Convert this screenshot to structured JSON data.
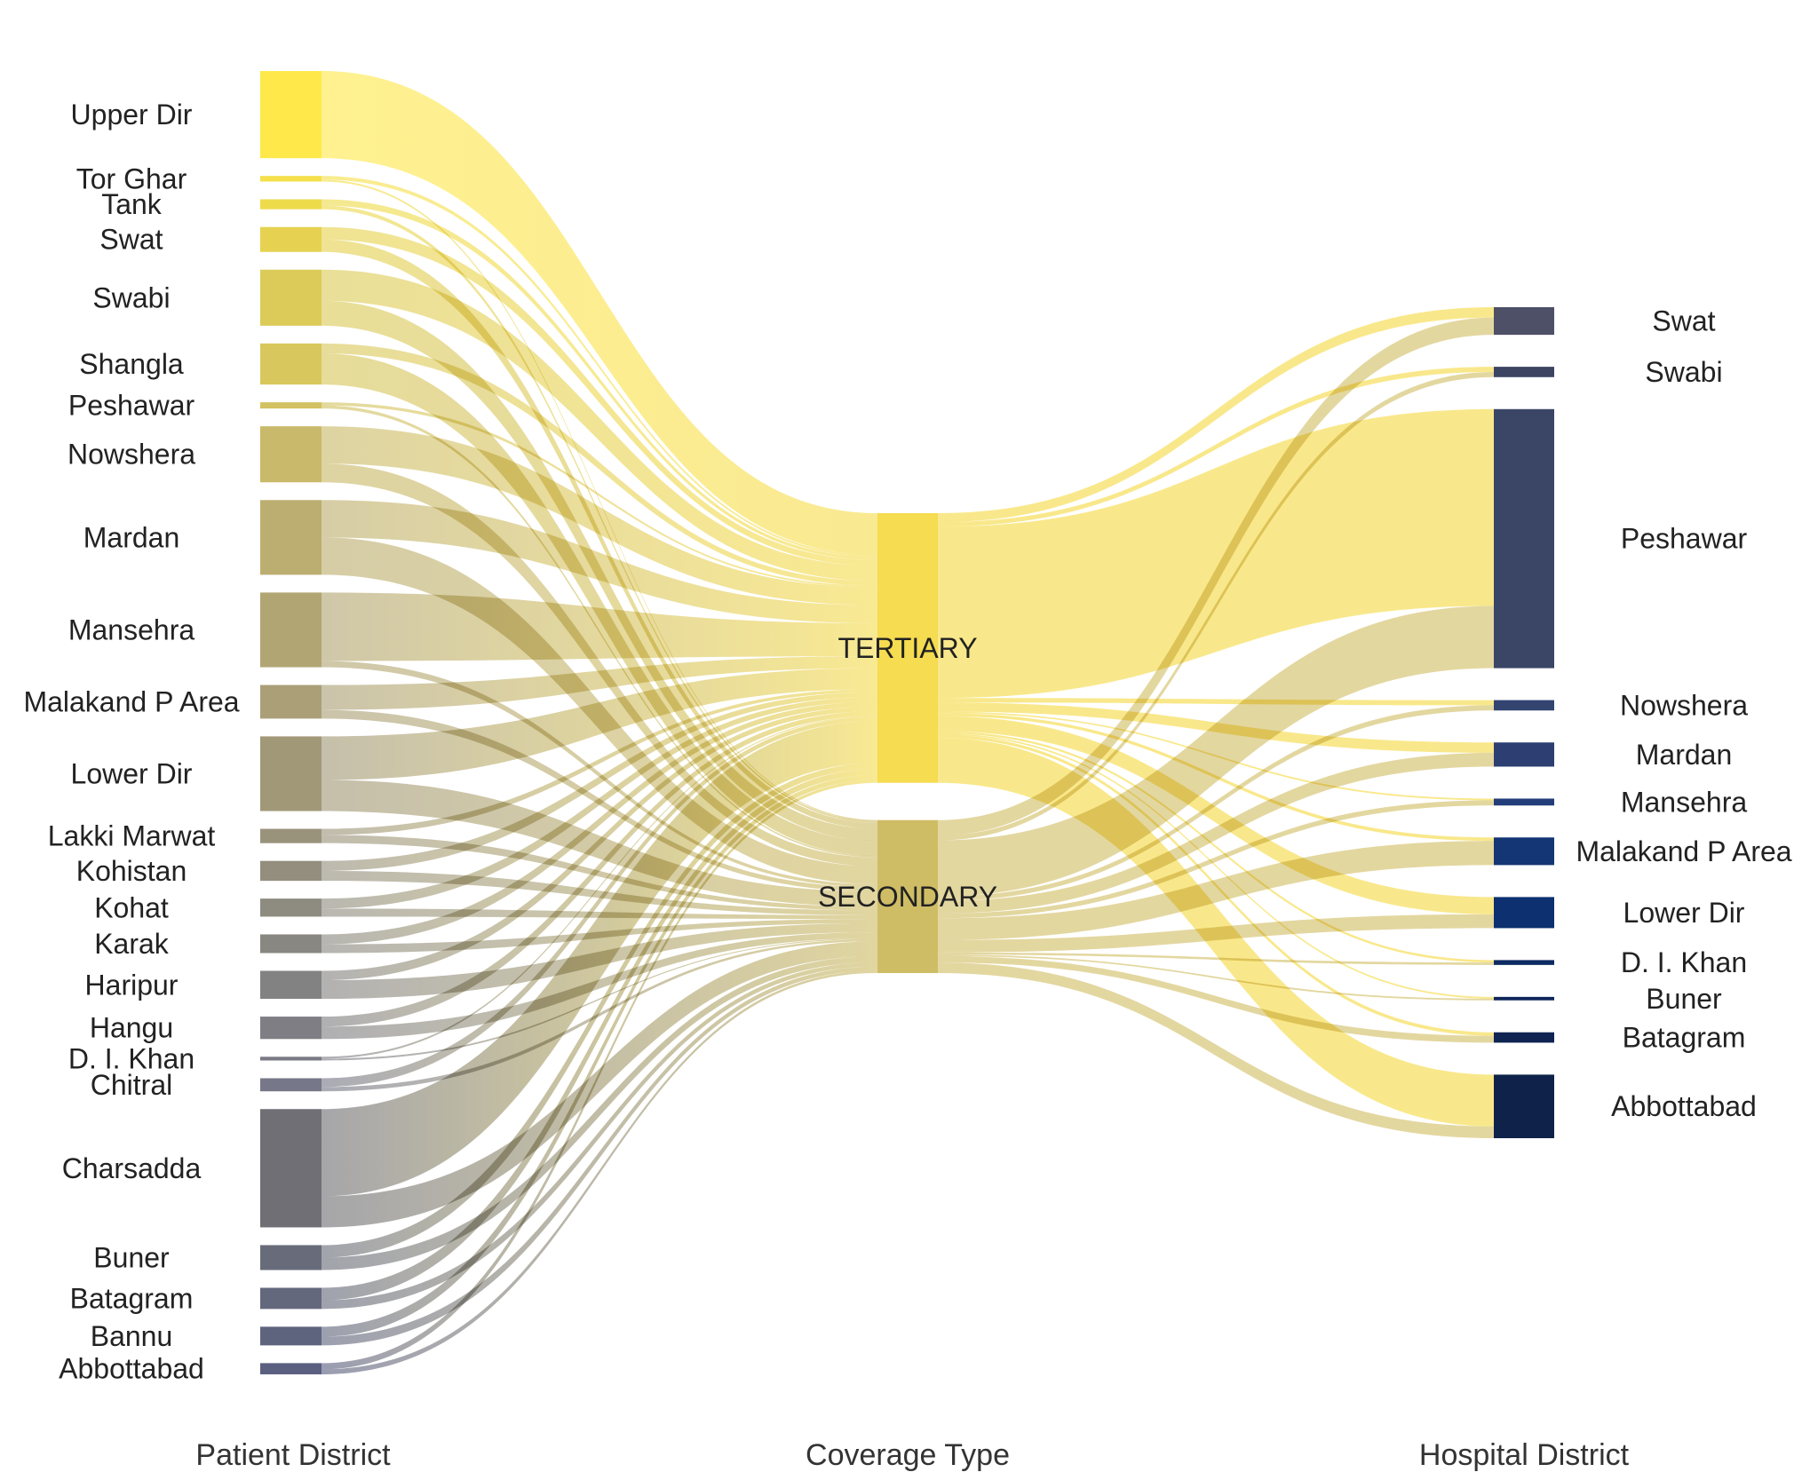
{
  "column_titles": {
    "left": "Patient District",
    "middle": "Coverage Type",
    "right": "Hospital District"
  },
  "patient_districts": [
    {
      "name": "Upper Dir",
      "tertiary": 14,
      "secondary": 0,
      "color": "#ffe94a"
    },
    {
      "name": "Tor Ghar",
      "tertiary": 0.6,
      "secondary": 0.3,
      "color": "#f5e04a"
    },
    {
      "name": "Tank",
      "tertiary": 1,
      "secondary": 0.6,
      "color": "#eedb4c"
    },
    {
      "name": "Swat",
      "tertiary": 2,
      "secondary": 2,
      "color": "#e6d250"
    },
    {
      "name": "Swabi",
      "tertiary": 5,
      "secondary": 4,
      "color": "#dccb58"
    },
    {
      "name": "Shangla",
      "tertiary": 1.6,
      "secondary": 5,
      "color": "#d8c75c"
    },
    {
      "name": "Peshawar",
      "tertiary": 0.5,
      "secondary": 0.5,
      "color": "#d2c262"
    },
    {
      "name": "Nowshera",
      "tertiary": 6,
      "secondary": 3,
      "color": "#c9b96a"
    },
    {
      "name": "Mardan",
      "tertiary": 6,
      "secondary": 6,
      "color": "#bcae70"
    },
    {
      "name": "Mansehra",
      "tertiary": 11,
      "secondary": 1,
      "color": "#b1a573"
    },
    {
      "name": "Malakand P Area",
      "tertiary": 4,
      "secondary": 1.4,
      "color": "#aa9f77"
    },
    {
      "name": "Lower Dir",
      "tertiary": 7,
      "secondary": 5,
      "color": "#a19878"
    },
    {
      "name": "Lakki Marwat",
      "tertiary": 1,
      "secondary": 1.3,
      "color": "#9a937b"
    },
    {
      "name": "Kohistan",
      "tertiary": 1.6,
      "secondary": 1.6,
      "color": "#938e7e"
    },
    {
      "name": "Kohat",
      "tertiary": 1.6,
      "secondary": 1.3,
      "color": "#8e8b80"
    },
    {
      "name": "Karak",
      "tertiary": 1.6,
      "secondary": 1.4,
      "color": "#898781"
    },
    {
      "name": "Haripur",
      "tertiary": 1.5,
      "secondary": 3,
      "color": "#838282"
    },
    {
      "name": "Hangu",
      "tertiary": 1.6,
      "secondary": 2,
      "color": "#7e7e84"
    },
    {
      "name": "D. I. Khan",
      "tertiary": 0.3,
      "secondary": 0.3,
      "color": "#7a7a86"
    },
    {
      "name": "Chitral",
      "tertiary": 1.4,
      "secondary": 0.7,
      "color": "#767788"
    },
    {
      "name": "Charsadda",
      "tertiary": 14,
      "secondary": 5,
      "color": "#6f6f75"
    },
    {
      "name": "Buner",
      "tertiary": 2,
      "secondary": 2,
      "color": "#686c7a"
    },
    {
      "name": "Batagram",
      "tertiary": 2,
      "secondary": 1.4,
      "color": "#64687c"
    },
    {
      "name": "Bannu",
      "tertiary": 1.6,
      "secondary": 1.4,
      "color": "#5f647e"
    },
    {
      "name": "Abbottabad",
      "tertiary": 1,
      "secondary": 0.8,
      "color": "#5b6081"
    }
  ],
  "coverage_types": [
    {
      "name": "TERTIARY",
      "color": "#f5dc50"
    },
    {
      "name": "SECONDARY",
      "color": "#cfbd66"
    }
  ],
  "hospital_districts": [
    {
      "name": "Swat",
      "tertiary": 3,
      "secondary": 5,
      "color": "#4d5066"
    },
    {
      "name": "Swabi",
      "tertiary": 1.5,
      "secondary": 1.5,
      "color": "#3c4462"
    },
    {
      "name": "Peshawar",
      "tertiary": 57,
      "secondary": 18,
      "color": "#3b4566"
    },
    {
      "name": "Nowshera",
      "tertiary": 1.5,
      "secondary": 1.5,
      "color": "#334470"
    },
    {
      "name": "Mardan",
      "tertiary": 3,
      "secondary": 4,
      "color": "#2d3f72"
    },
    {
      "name": "Mansehra",
      "tertiary": 0.5,
      "secondary": 1.5,
      "color": "#223d7a"
    },
    {
      "name": "Malakand P Area",
      "tertiary": 1,
      "secondary": 7,
      "color": "#143674"
    },
    {
      "name": "Lower Dir",
      "tertiary": 5,
      "secondary": 4,
      "color": "#0c3070"
    },
    {
      "name": "D. I. Khan",
      "tertiary": 0.7,
      "secondary": 0.7,
      "color": "#0d2a62"
    },
    {
      "name": "Buner",
      "tertiary": 0.5,
      "secondary": 0.5,
      "color": "#0e265a"
    },
    {
      "name": "Batagram",
      "tertiary": 1,
      "secondary": 2,
      "color": "#0f2452"
    },
    {
      "name": "Abbottabad",
      "tertiary": 15,
      "secondary": 3.4,
      "color": "#0f2249"
    }
  ]
}
